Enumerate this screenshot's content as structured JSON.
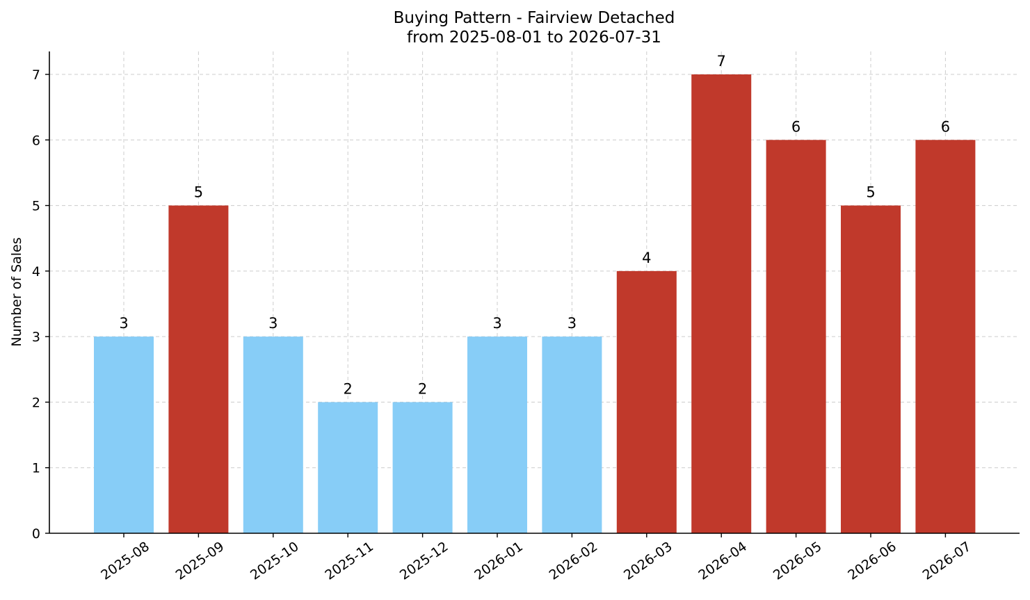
{
  "chart_data": {
    "type": "bar",
    "title": "Buying Pattern - Fairview Detached",
    "subtitle": "from 2025-08-01 to 2026-07-31",
    "xlabel": "",
    "ylabel": "Number of Sales",
    "categories": [
      "2025-08",
      "2025-09",
      "2025-10",
      "2025-11",
      "2025-12",
      "2026-01",
      "2026-02",
      "2026-03",
      "2026-04",
      "2026-05",
      "2026-06",
      "2026-07"
    ],
    "values": [
      3,
      5,
      3,
      2,
      2,
      3,
      3,
      4,
      7,
      6,
      5,
      6
    ],
    "bar_colors": [
      "#87cdf7",
      "#c0392b",
      "#87cdf7",
      "#87cdf7",
      "#87cdf7",
      "#87cdf7",
      "#87cdf7",
      "#c0392b",
      "#c0392b",
      "#c0392b",
      "#c0392b",
      "#c0392b"
    ],
    "yticks": [
      0,
      1,
      2,
      3,
      4,
      5,
      6,
      7
    ],
    "ylim": [
      0,
      7.35
    ],
    "grid": true,
    "legend": false
  }
}
